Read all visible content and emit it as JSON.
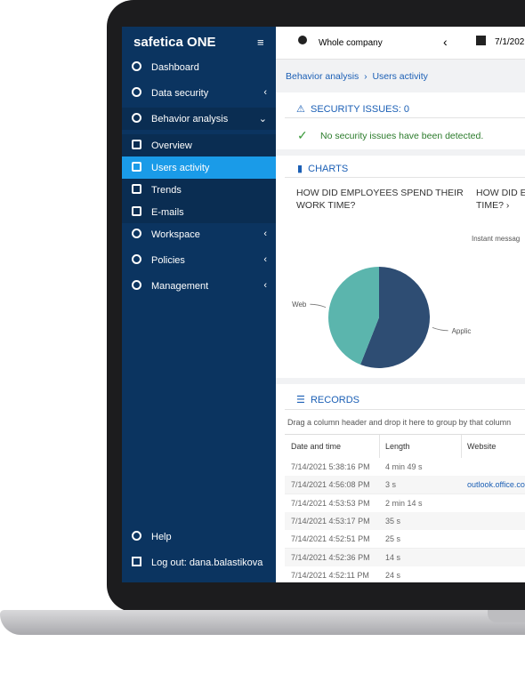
{
  "sidebar": {
    "logo": "safetica ONE",
    "menu": [
      "Dashboard",
      "Data security",
      "Behavior analysis",
      "Overview",
      "Users activity",
      "Trends",
      "E-mails",
      "Workspace",
      "Policies",
      "Management"
    ],
    "footer": [
      "Help",
      "Log out: dana.balastikova"
    ]
  },
  "topbar": {
    "company": "Whole company",
    "date": "7/1/202"
  },
  "breadcrumb": [
    "Behavior analysis",
    "Users activity"
  ],
  "security": {
    "title": "SECURITY ISSUES: 0",
    "message": "No security issues have been detected."
  },
  "charts": {
    "title": "CHARTS",
    "items": [
      {
        "type": "pie",
        "title_lines": [
          "HOW DID EMPLOYEES SPEND THEIR",
          "WORK TIME?"
        ],
        "categories": [
          "Web",
          "Applic"
        ],
        "values": [
          44,
          56
        ],
        "colors": [
          "#5bb5ad",
          "#2e4d73"
        ]
      },
      {
        "title_lines": [
          "HOW DID EM",
          "TIME?"
        ],
        "label": "Instant messag"
      }
    ]
  },
  "records": {
    "title": "RECORDS",
    "hint": "Drag a column header and drop it here to group by that column",
    "columns": [
      "Date and time",
      "Length",
      "Website"
    ],
    "rows": [
      [
        "7/14/2021 5:38:16 PM",
        "4 min 49 s"
      ],
      [
        "7/14/2021 4:56:08 PM",
        "3 s",
        "outlook.office.co"
      ],
      [
        "7/14/2021 4:53:53 PM",
        "2 min 14 s"
      ],
      [
        "7/14/2021 4:53:17 PM",
        "35 s"
      ],
      [
        "7/14/2021 4:52:51 PM",
        "25 s"
      ],
      [
        "7/14/2021 4:52:36 PM",
        "14 s"
      ],
      [
        "7/14/2021 4:52:11 PM",
        "24 s"
      ]
    ]
  }
}
